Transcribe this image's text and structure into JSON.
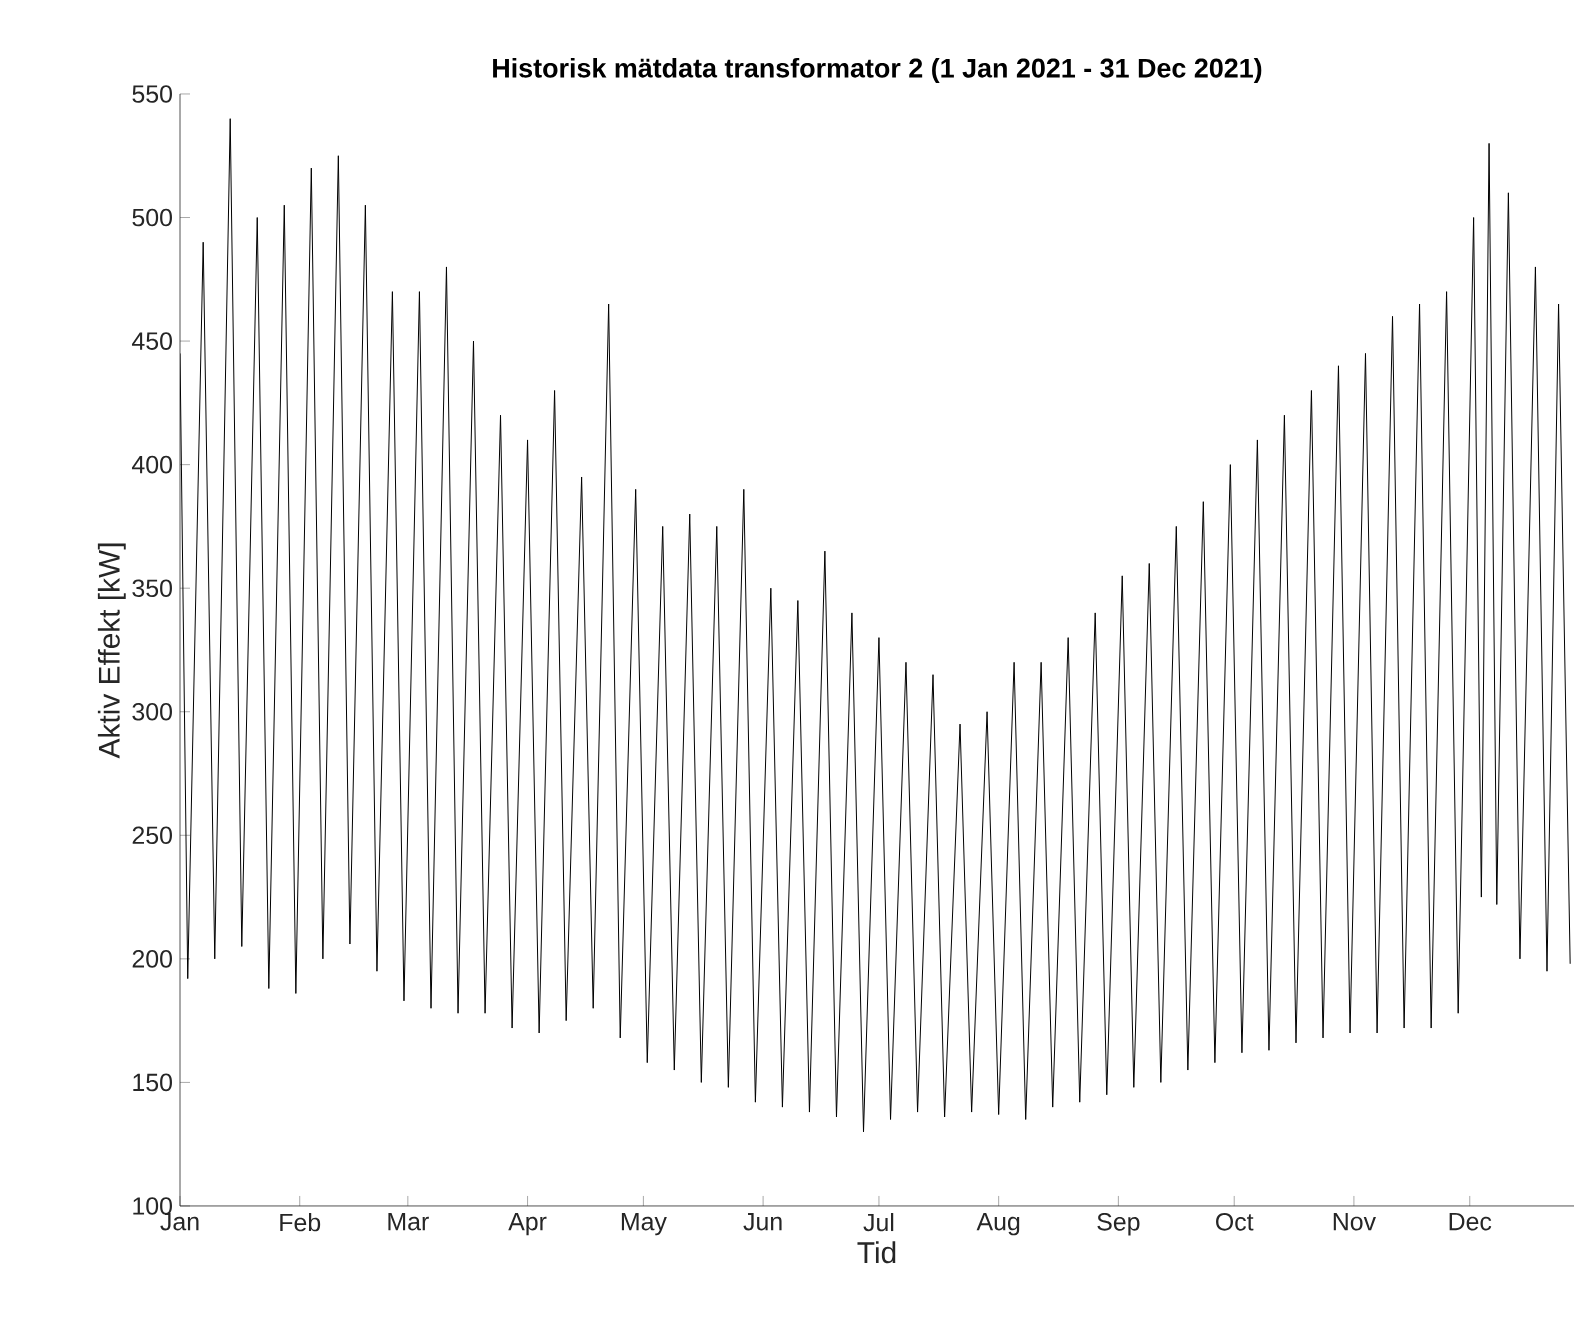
{
  "chart_data": {
    "type": "line",
    "title": "Historisk mätdata transformator 2 (1 Jan 2021 - 31 Dec 2021)",
    "xlabel": "Tid",
    "ylabel": "Aktiv Effekt [kW]",
    "x": [
      "2021-01-01",
      "2021-01-03",
      "2021-01-07",
      "2021-01-10",
      "2021-01-14",
      "2021-01-17",
      "2021-01-21",
      "2021-01-24",
      "2021-01-28",
      "2021-01-31",
      "2021-02-04",
      "2021-02-07",
      "2021-02-11",
      "2021-02-14",
      "2021-02-18",
      "2021-02-21",
      "2021-02-25",
      "2021-02-28",
      "2021-03-04",
      "2021-03-07",
      "2021-03-11",
      "2021-03-14",
      "2021-03-18",
      "2021-03-21",
      "2021-03-25",
      "2021-03-28",
      "2021-04-01",
      "2021-04-04",
      "2021-04-08",
      "2021-04-11",
      "2021-04-15",
      "2021-04-18",
      "2021-04-22",
      "2021-04-25",
      "2021-04-29",
      "2021-05-02",
      "2021-05-06",
      "2021-05-09",
      "2021-05-13",
      "2021-05-16",
      "2021-05-20",
      "2021-05-23",
      "2021-05-27",
      "2021-05-30",
      "2021-06-03",
      "2021-06-06",
      "2021-06-10",
      "2021-06-13",
      "2021-06-17",
      "2021-06-20",
      "2021-06-24",
      "2021-06-27",
      "2021-07-01",
      "2021-07-04",
      "2021-07-08",
      "2021-07-11",
      "2021-07-15",
      "2021-07-18",
      "2021-07-22",
      "2021-07-25",
      "2021-07-29",
      "2021-08-01",
      "2021-08-05",
      "2021-08-08",
      "2021-08-12",
      "2021-08-15",
      "2021-08-19",
      "2021-08-22",
      "2021-08-26",
      "2021-08-29",
      "2021-09-02",
      "2021-09-05",
      "2021-09-09",
      "2021-09-12",
      "2021-09-16",
      "2021-09-19",
      "2021-09-23",
      "2021-09-26",
      "2021-09-30",
      "2021-10-03",
      "2021-10-07",
      "2021-10-10",
      "2021-10-14",
      "2021-10-17",
      "2021-10-21",
      "2021-10-24",
      "2021-10-28",
      "2021-10-31",
      "2021-11-04",
      "2021-11-07",
      "2021-11-11",
      "2021-11-14",
      "2021-11-18",
      "2021-11-21",
      "2021-11-25",
      "2021-11-28",
      "2021-12-02",
      "2021-12-04",
      "2021-12-06",
      "2021-12-08",
      "2021-12-11",
      "2021-12-14",
      "2021-12-18",
      "2021-12-21",
      "2021-12-24",
      "2021-12-27"
    ],
    "series": [
      {
        "color": "#000000",
        "values": [
          445,
          192,
          490,
          200,
          540,
          205,
          500,
          188,
          505,
          186,
          520,
          200,
          525,
          206,
          505,
          195,
          470,
          183,
          470,
          180,
          480,
          178,
          450,
          178,
          420,
          172,
          410,
          170,
          430,
          175,
          395,
          180,
          465,
          168,
          390,
          158,
          375,
          155,
          380,
          150,
          375,
          148,
          390,
          142,
          350,
          140,
          345,
          138,
          365,
          136,
          340,
          130,
          330,
          135,
          320,
          138,
          315,
          136,
          295,
          138,
          300,
          137,
          320,
          135,
          320,
          140,
          330,
          142,
          340,
          145,
          355,
          148,
          360,
          150,
          375,
          155,
          385,
          158,
          400,
          162,
          410,
          163,
          420,
          166,
          430,
          168,
          440,
          170,
          445,
          170,
          460,
          172,
          465,
          172,
          470,
          178,
          500,
          225,
          530,
          222,
          510,
          200,
          480,
          195,
          465,
          198
        ]
      }
    ],
    "xlim": [
      "2021-01-01",
      "2021-12-28"
    ],
    "xticks": [
      {
        "value": "2021-01-01",
        "label": "Jan"
      },
      {
        "value": "2021-02-01",
        "label": "Feb"
      },
      {
        "value": "2021-03-01",
        "label": "Mar"
      },
      {
        "value": "2021-04-01",
        "label": "Apr"
      },
      {
        "value": "2021-05-01",
        "label": "May"
      },
      {
        "value": "2021-06-01",
        "label": "Jun"
      },
      {
        "value": "2021-07-01",
        "label": "Jul"
      },
      {
        "value": "2021-08-01",
        "label": "Aug"
      },
      {
        "value": "2021-09-01",
        "label": "Sep"
      },
      {
        "value": "2021-10-01",
        "label": "Oct"
      },
      {
        "value": "2021-11-01",
        "label": "Nov"
      },
      {
        "value": "2021-12-01",
        "label": "Dec"
      }
    ],
    "ylim": [
      100,
      550
    ],
    "yticks": [
      100,
      150,
      200,
      250,
      300,
      350,
      400,
      450,
      500,
      550
    ],
    "line_style": "solid"
  }
}
